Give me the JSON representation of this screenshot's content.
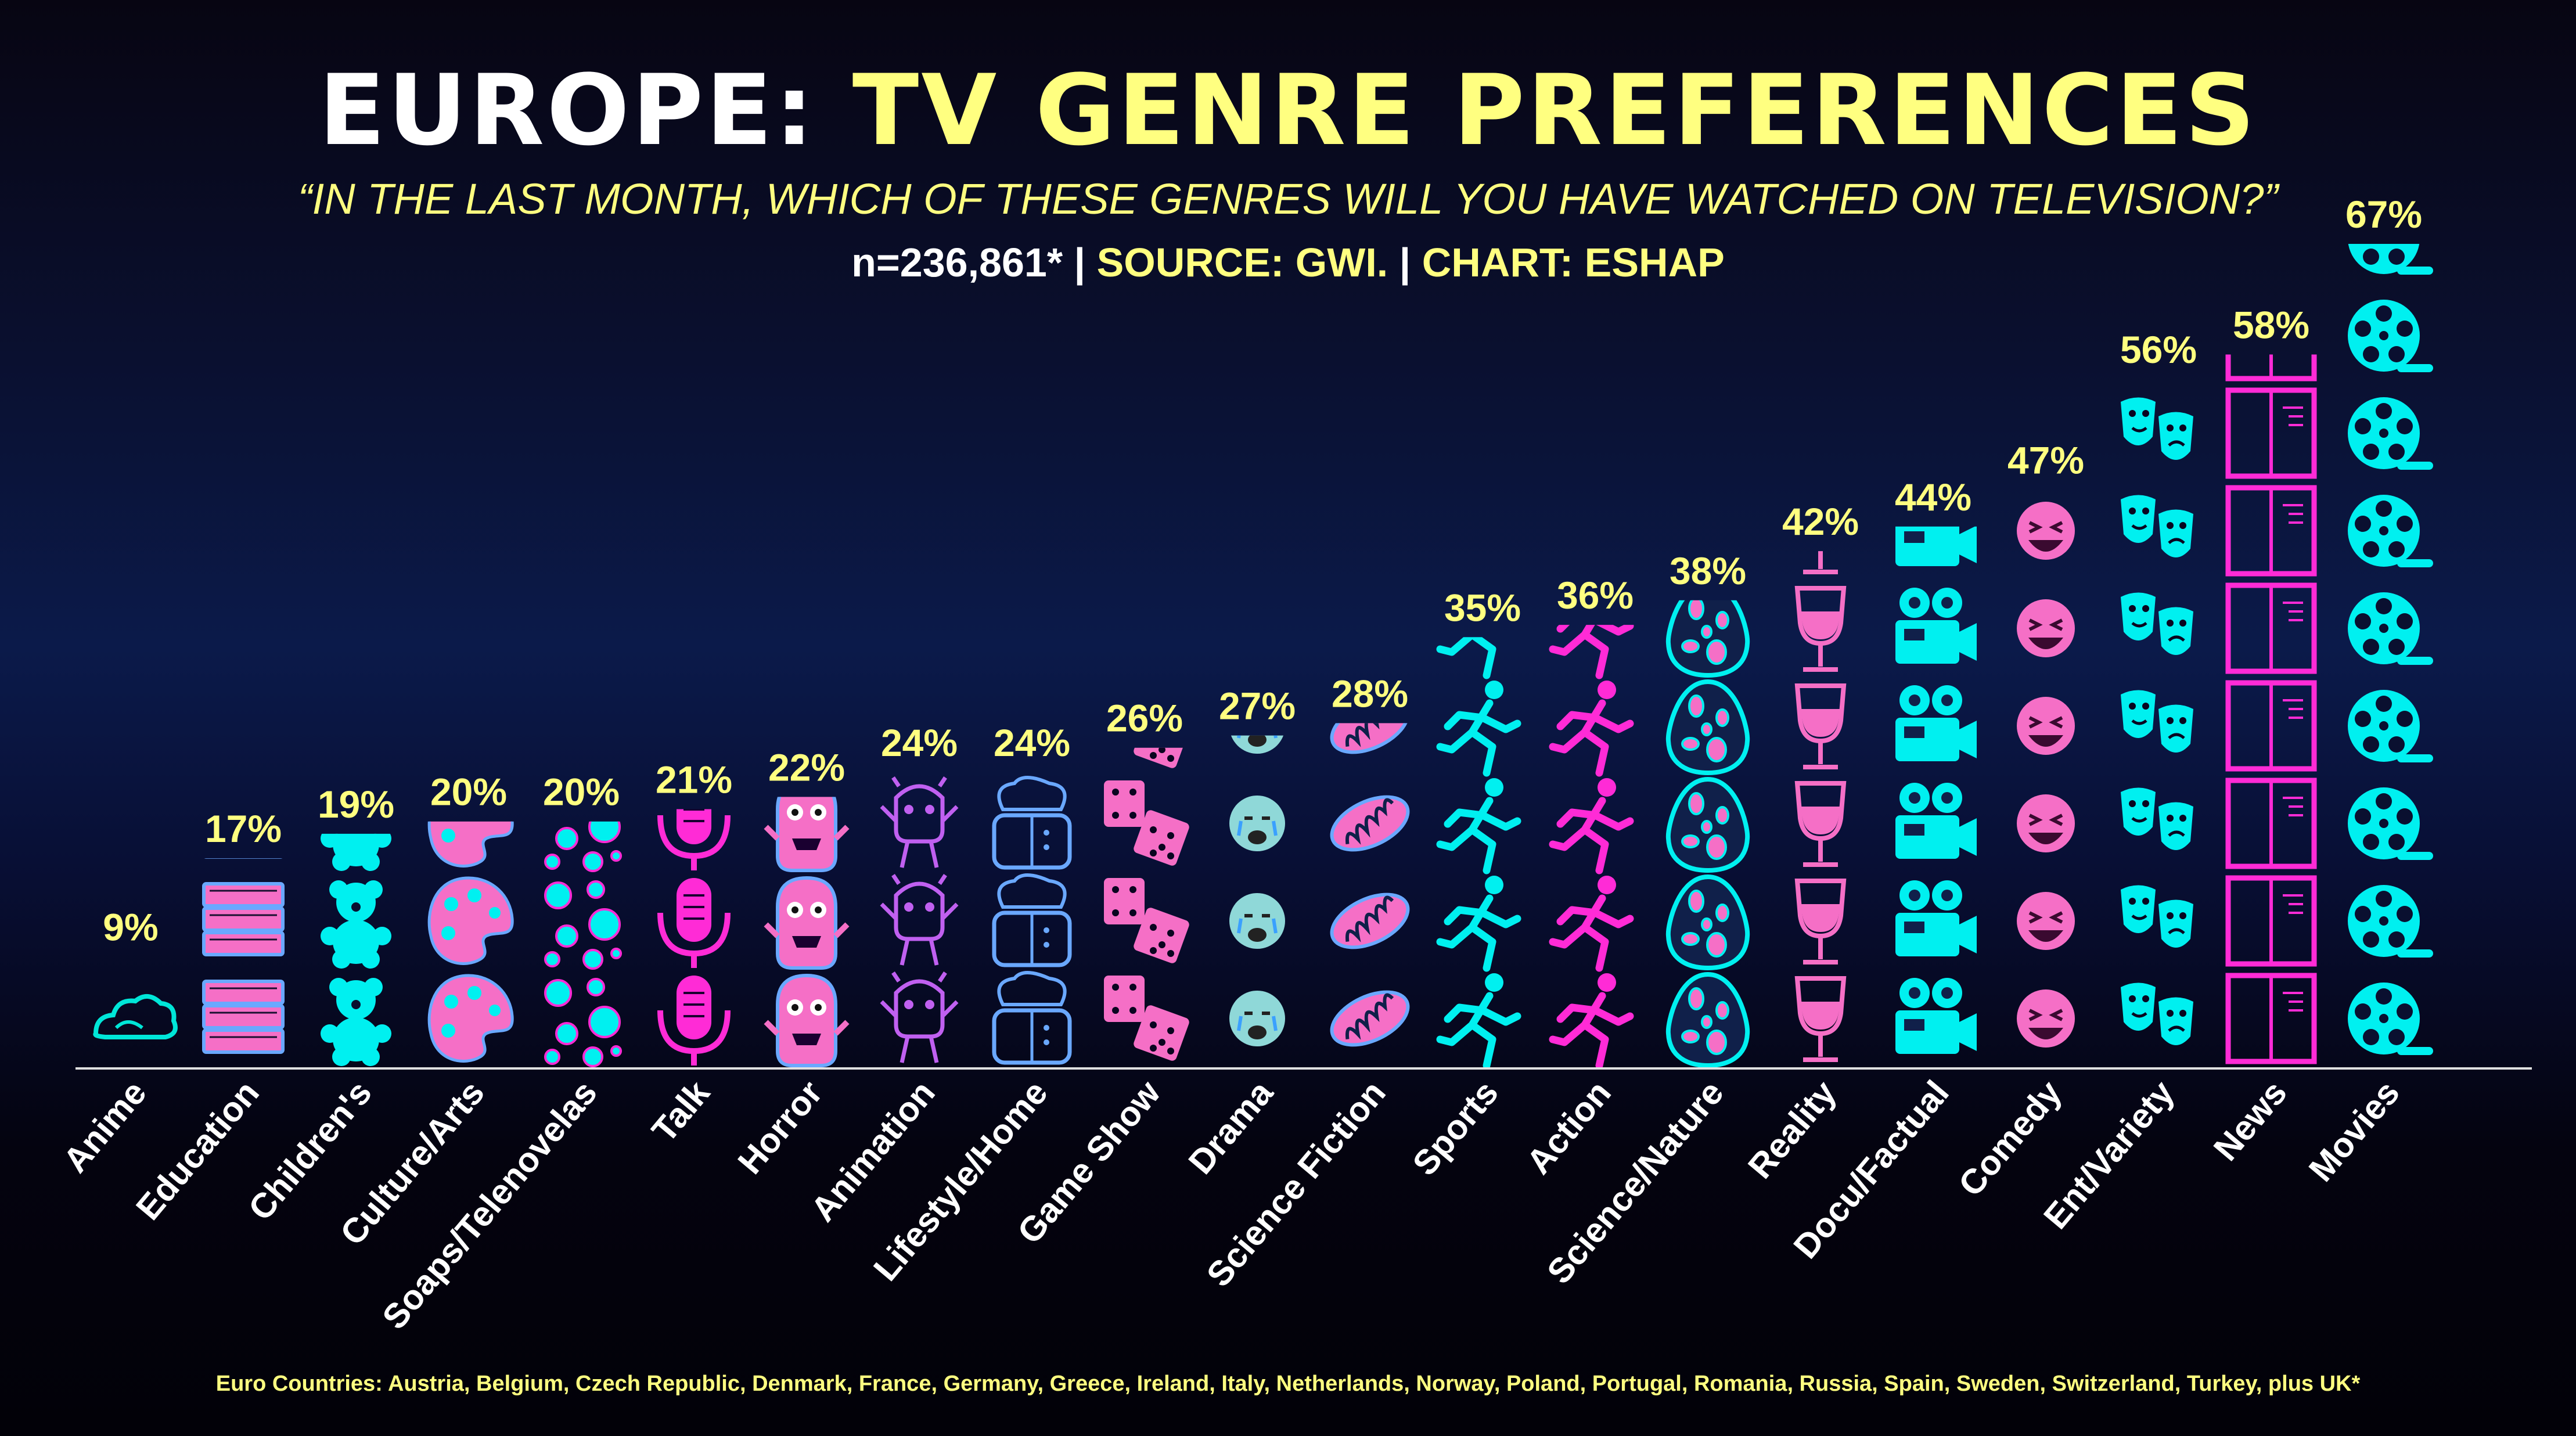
{
  "title": {
    "part1": "EUROPE:",
    "part2": "TV GENRE PREFERENCES"
  },
  "subtitle": "“IN THE LAST MONTH, WHICH OF THESE GENRES WILL YOU HAVE WATCHED ON TELEVISION?”",
  "source": {
    "sample": "n=236,861*",
    "sep1": " | ",
    "source_label": "SOURCE: GWI.",
    "sep2": " | ",
    "chart_credit": "CHART: ESHAP"
  },
  "footnote": "Euro Countries: Austria, Belgium, Czech Republic, Denmark, France, Germany, Greece, Ireland, Italy, Netherlands, Norway, Poland, Portugal, Romania, Russia, Spain, Sweden, Switzerland, Turkey, plus UK*",
  "colors": {
    "title_white": "#ffffff",
    "accent_yellow": "#ffff80",
    "cyan": "#00f0f0",
    "magenta": "#ff2bd6",
    "pink": "#f56fc6",
    "violet": "#c060f0",
    "blue_outline": "#6aa8ff",
    "axis": "#e0e0e0"
  },
  "chart_data": {
    "type": "bar",
    "style": "pictograph",
    "categories": [
      "Anime",
      "Education",
      "Children's",
      "Culture/Arts",
      "Soaps/Telenovelas",
      "Talk",
      "Horror",
      "Animation",
      "Lifestyle/Home",
      "Game Show",
      "Drama",
      "Science Fiction",
      "Sports",
      "Action",
      "Science/Nature",
      "Reality",
      "Docu/Factual",
      "Comedy",
      "Ent/Variety",
      "News",
      "Movies"
    ],
    "values": [
      9,
      17,
      19,
      20,
      20,
      21,
      22,
      24,
      24,
      26,
      27,
      28,
      35,
      36,
      38,
      42,
      44,
      47,
      56,
      58,
      67
    ],
    "value_labels": [
      "9%",
      "17%",
      "19%",
      "20%",
      "20%",
      "21%",
      "22%",
      "24%",
      "24%",
      "26%",
      "27%",
      "28%",
      "35%",
      "36%",
      "38%",
      "42%",
      "44%",
      "47%",
      "56%",
      "58%",
      "67%"
    ],
    "icons": [
      "cloud-icon",
      "books-icon",
      "teddy-bear-icon",
      "palette-icon",
      "bubbles-icon",
      "microphone-icon",
      "monster-icon",
      "alien-icon",
      "chef-icon",
      "dice-icon",
      "crying-face-icon",
      "mitochondria-icon",
      "running-person-icon",
      "running-person-icon",
      "egg-icon",
      "wine-glass-icon",
      "movie-camera-icon",
      "laughing-face-icon",
      "theater-masks-icon",
      "newspaper-icon",
      "film-reel-icon"
    ],
    "icon_colors": [
      "#00e6d8",
      "#6aa8ff",
      "#00f0f0",
      "#f56fc6",
      "#00f0f0",
      "#ff2bd6",
      "#f56fc6",
      "#c060f0",
      "#6aa8ff",
      "#f56fc6",
      "#8fd8d8",
      "#f56fc6",
      "#00f0f0",
      "#ff2bd6",
      "#00f0f0",
      "#f56fc6",
      "#00f0f0",
      "#f56fc6",
      "#00f0f0",
      "#ff2bd6",
      "#00f0f0"
    ],
    "ylim": [
      0,
      70
    ],
    "grid": false,
    "legend": "none",
    "xlabel": "",
    "ylabel": ""
  }
}
